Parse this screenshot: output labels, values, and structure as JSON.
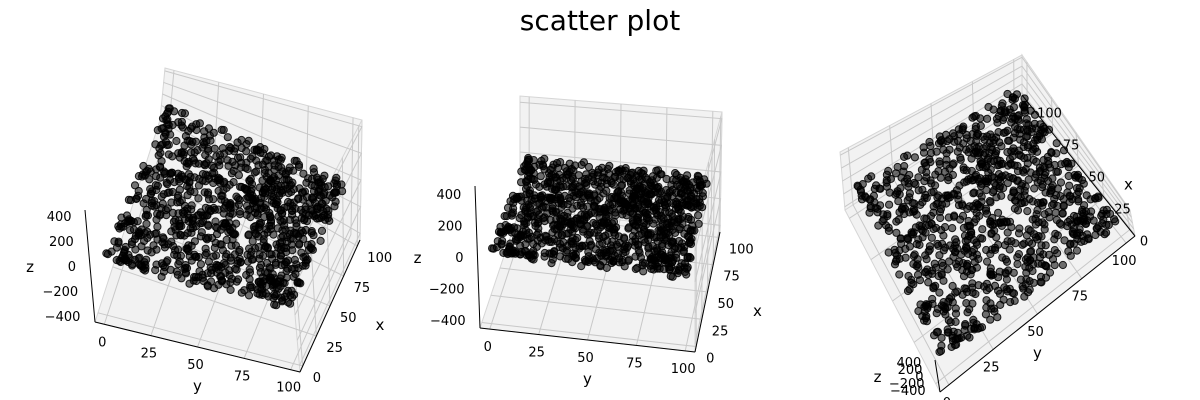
{
  "chart_data": {
    "type": "scatter",
    "title": "scatter plot",
    "colors": {
      "points": "#000000",
      "pane": "#f2f2f2",
      "grid": "#cccccc"
    },
    "grid": true,
    "points": {
      "count": 1000,
      "x_range": [
        0,
        100
      ],
      "y_range": [
        0,
        100
      ],
      "z_range": [
        -20,
        20
      ]
    },
    "subplots": [
      {
        "type": "scatter3d",
        "xlabel": "x",
        "ylabel": "y",
        "zlabel": "z",
        "xticks": [
          "0",
          "25",
          "50",
          "75",
          "100"
        ],
        "yticks": [
          "0",
          "25",
          "50",
          "75",
          "100"
        ],
        "zticks": [
          "400",
          "200",
          "0",
          "−200",
          "−400"
        ],
        "xlim": [
          -5,
          105
        ],
        "ylim": [
          -5,
          105
        ],
        "zlim": [
          -450,
          450
        ],
        "view": {
          "elev": 60,
          "azim": 30
        }
      },
      {
        "type": "scatter3d",
        "xlabel": "x",
        "ylabel": "y",
        "zlabel": "z",
        "xticks": [
          "0",
          "25",
          "50",
          "75",
          "100"
        ],
        "yticks": [
          "0",
          "25",
          "50",
          "75",
          "100"
        ],
        "zticks": [
          "400",
          "200",
          "0",
          "−200",
          "−400"
        ],
        "xlim": [
          -5,
          105
        ],
        "ylim": [
          -5,
          105
        ],
        "zlim": [
          -450,
          450
        ],
        "view": {
          "elev": 25,
          "azim": 15
        }
      },
      {
        "type": "scatter3d",
        "xlabel": "x",
        "ylabel": "y",
        "zlabel": "z",
        "xticks": [
          "0",
          "25",
          "50",
          "75",
          "100"
        ],
        "yticks": [
          "0",
          "25",
          "50",
          "75",
          "100"
        ],
        "zticks": [
          "400",
          "200",
          "0",
          "−200",
          "−400"
        ],
        "xlim": [
          -5,
          105
        ],
        "ylim": [
          -5,
          105
        ],
        "zlim": [
          -450,
          450
        ],
        "view": {
          "elev": 75,
          "azim": 60
        }
      }
    ]
  }
}
